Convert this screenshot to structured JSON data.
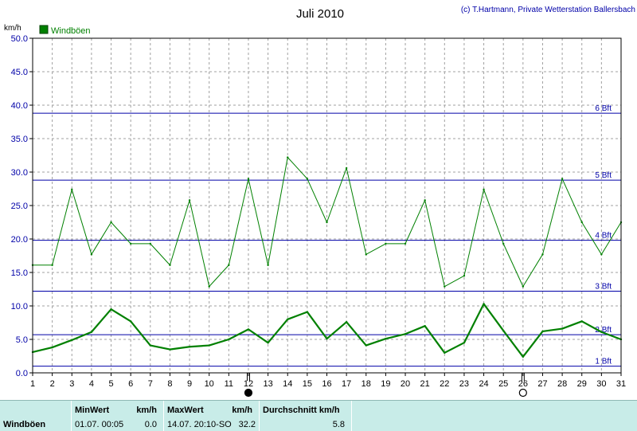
{
  "chart_data": {
    "type": "line",
    "title": "Juli 2010",
    "credit": "(c) T.Hartmann, Private Wetterstation Ballersbach",
    "ylabel": "km/h",
    "ylim": [
      0,
      50
    ],
    "yticks": [
      "0.0",
      "5.0",
      "10.0",
      "15.0",
      "20.0",
      "25.0",
      "30.0",
      "35.0",
      "40.0",
      "45.0",
      "50.0"
    ],
    "x": [
      1,
      2,
      3,
      4,
      5,
      6,
      7,
      8,
      9,
      10,
      11,
      12,
      13,
      14,
      15,
      16,
      17,
      18,
      19,
      20,
      21,
      22,
      23,
      24,
      25,
      26,
      27,
      28,
      29,
      30,
      31
    ],
    "xlim": [
      1,
      31
    ],
    "grid": true,
    "legend": {
      "position": "top-left",
      "entries": [
        "Windböen"
      ]
    },
    "series": [
      {
        "name": "Windböen",
        "role": "daily max gust",
        "values": [
          16.1,
          16.1,
          27.4,
          17.7,
          22.5,
          19.3,
          19.3,
          16.1,
          25.8,
          12.9,
          16.1,
          29.0,
          16.1,
          32.2,
          29.0,
          22.5,
          30.6,
          17.7,
          19.3,
          19.3,
          25.8,
          12.9,
          14.5,
          27.4,
          19.3,
          12.9,
          17.7,
          29.0,
          22.5,
          17.7,
          22.5
        ]
      },
      {
        "role": "daily mean",
        "values": [
          3.1,
          3.8,
          4.9,
          6.1,
          9.5,
          7.7,
          4.1,
          3.5,
          3.9,
          4.1,
          5.0,
          6.5,
          4.5,
          8.0,
          9.1,
          5.1,
          7.6,
          4.1,
          5.1,
          5.8,
          7.0,
          3.0,
          4.5,
          10.3,
          6.3,
          2.4,
          6.2,
          6.6,
          7.7,
          6.1,
          5.0
        ]
      }
    ],
    "beaufort_lines": [
      {
        "label": "1 Bft",
        "value": 1.0
      },
      {
        "label": "2 Bft",
        "value": 5.7
      },
      {
        "label": "3 Bft",
        "value": 12.2
      },
      {
        "label": "4 Bft",
        "value": 19.8
      },
      {
        "label": "5 Bft",
        "value": 28.8
      },
      {
        "label": "6 Bft",
        "value": 38.8
      }
    ],
    "markers": [
      {
        "day": 12,
        "symbol": "filled-circle"
      },
      {
        "day": 26,
        "symbol": "open-circle"
      }
    ]
  },
  "colors": {
    "series": "#008000",
    "beaufort": "#0000a8",
    "grid": "#a0a0a0",
    "stats_bg": "#c8ece8"
  },
  "stats": {
    "series_label": "Windböen",
    "min_header": "MinWert",
    "min_unit": "km/h",
    "min_time": "01.07.  00:05",
    "min_value": "0.0",
    "max_header": "MaxWert",
    "max_unit": "km/h",
    "max_time": "14.07.  20:10-SO",
    "max_value": "32.2",
    "avg_header": "Durchschnitt km/h",
    "avg_value": "5.8"
  }
}
